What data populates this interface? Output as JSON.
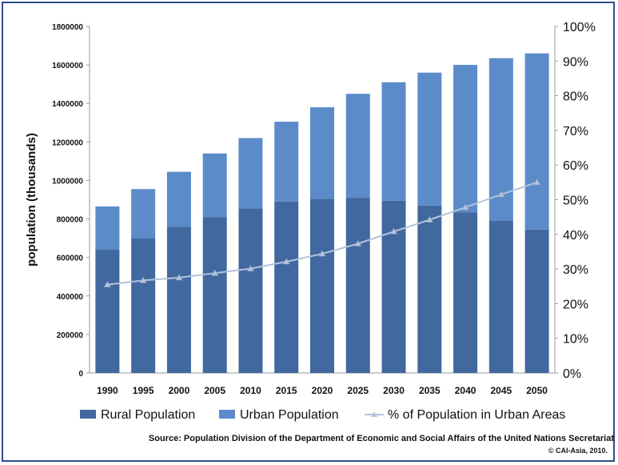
{
  "chart_data": {
    "type": "bar",
    "stacked": true,
    "categories": [
      "1990",
      "1995",
      "2000",
      "2005",
      "2010",
      "2015",
      "2020",
      "2025",
      "2030",
      "2035",
      "2040",
      "2045",
      "2050"
    ],
    "series": [
      {
        "name": "Rural Population",
        "axis": "left",
        "color": "#41689f",
        "values": [
          640000,
          700000,
          760000,
          810000,
          855000,
          890000,
          905000,
          910000,
          895000,
          870000,
          835000,
          790000,
          745000
        ]
      },
      {
        "name": "Urban Population",
        "axis": "left",
        "color": "#5b8bc9",
        "values": [
          225000,
          255000,
          285000,
          330000,
          365000,
          415000,
          475000,
          540000,
          615000,
          690000,
          765000,
          845000,
          915000
        ]
      },
      {
        "name": "% of Population in Urban Areas",
        "type": "line",
        "axis": "right",
        "color": "#b4c4dc",
        "values": [
          25.5,
          26.7,
          27.5,
          28.8,
          30.1,
          32.1,
          34.4,
          37.3,
          40.8,
          44.2,
          47.8,
          51.5,
          55.0
        ]
      }
    ],
    "ylabel": "population (thousands)",
    "ylim": [
      0,
      1800000
    ],
    "yticks": [
      "0",
      "200000",
      "400000",
      "600000",
      "800000",
      "1000000",
      "1200000",
      "1400000",
      "1600000",
      "1800000"
    ],
    "y2lim": [
      0,
      100
    ],
    "y2ticks": [
      "0%",
      "10%",
      "20%",
      "30%",
      "40%",
      "50%",
      "60%",
      "70%",
      "80%",
      "90%",
      "100%"
    ],
    "legend_position": "bottom",
    "grid": false,
    "source": "Source: Population Division of the Department of Economic and Social Affairs of the United Nations Secretariat",
    "credit": "© CAI-Asia, 2010."
  }
}
